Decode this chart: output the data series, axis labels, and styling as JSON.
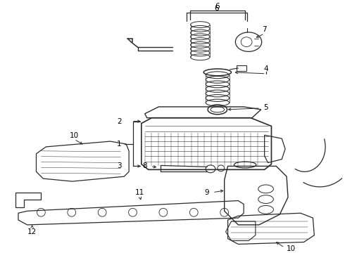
{
  "bg_color": "#ffffff",
  "line_color": "#2a2a2a",
  "label_color": "#000000",
  "figw": 4.9,
  "figh": 3.6,
  "dpi": 100
}
